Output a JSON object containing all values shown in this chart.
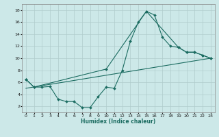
{
  "xlabel": "Humidex (Indice chaleur)",
  "background_color": "#cce8e8",
  "grid_color": "#b0cccc",
  "line_color": "#1a6b60",
  "xlim": [
    -0.5,
    23.5
  ],
  "ylim": [
    1,
    19
  ],
  "yticks": [
    2,
    4,
    6,
    8,
    10,
    12,
    14,
    16,
    18
  ],
  "xticks": [
    0,
    1,
    2,
    3,
    4,
    5,
    6,
    7,
    8,
    9,
    10,
    11,
    12,
    13,
    14,
    15,
    16,
    17,
    18,
    19,
    20,
    21,
    22,
    23
  ],
  "line1_x": [
    0,
    1,
    2,
    3,
    4,
    5,
    6,
    7,
    8,
    9,
    10,
    11,
    12,
    13,
    14,
    15,
    16,
    17,
    18,
    19,
    20,
    21,
    22,
    23
  ],
  "line1_y": [
    6.5,
    5.2,
    5.2,
    5.3,
    3.2,
    2.8,
    2.8,
    1.8,
    1.8,
    3.6,
    5.2,
    5.0,
    8.0,
    12.8,
    16.0,
    17.8,
    17.2,
    13.5,
    12.0,
    11.8,
    11.0,
    11.0,
    10.5,
    10.0
  ],
  "line2_x": [
    0,
    1,
    10,
    15,
    19,
    20,
    21,
    22,
    23
  ],
  "line2_y": [
    6.5,
    5.2,
    8.2,
    17.8,
    11.8,
    11.0,
    11.0,
    10.5,
    10.0
  ],
  "line3_x": [
    0,
    23
  ],
  "line3_y": [
    5.0,
    10.0
  ]
}
